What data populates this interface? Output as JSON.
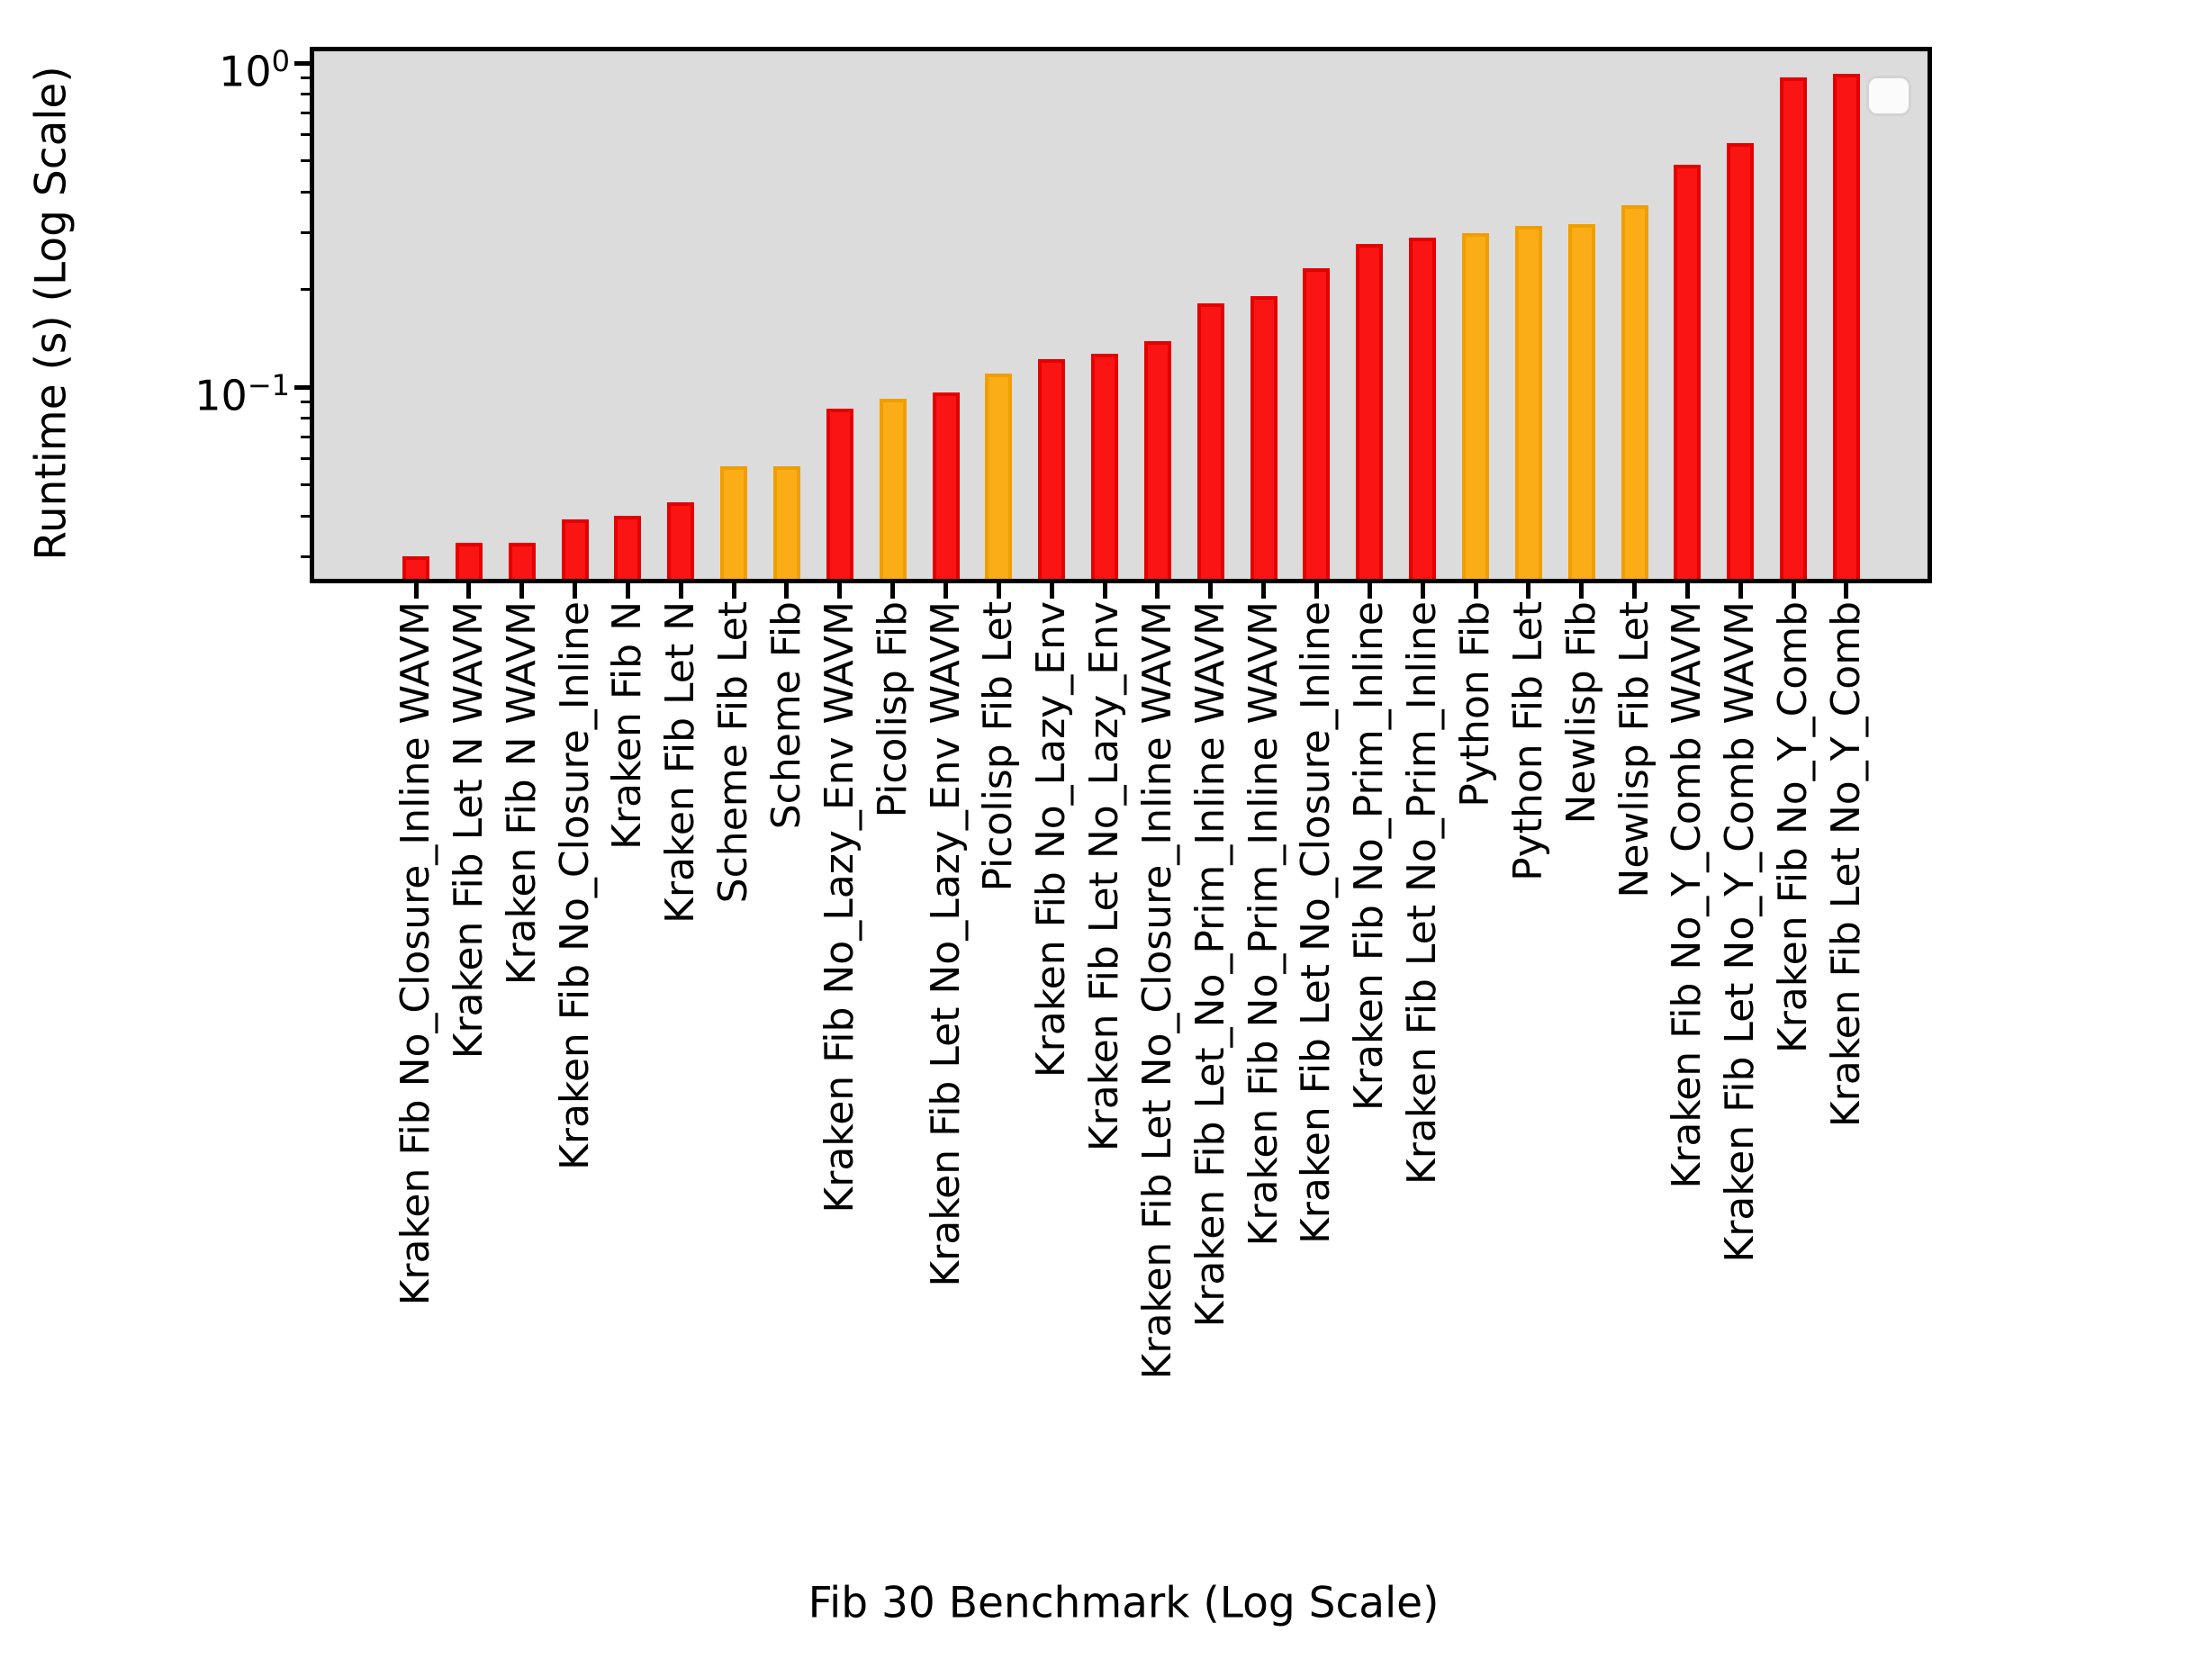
{
  "chart_data": {
    "type": "bar",
    "title": "",
    "xlabel": "Fib 30 Benchmark (Log Scale)",
    "ylabel": "Runtime (s) (Log Scale)",
    "y_scale": "log",
    "ylim": [
      0.0253,
      1.094
    ],
    "grid": false,
    "legend_position": "upper right",
    "legend_entries": [],
    "plot_bg": "#dcdcdc",
    "palette": {
      "red": {
        "fill": "#fa1414",
        "edge": "#e40000"
      },
      "orange": {
        "fill": "#fbad18",
        "edge": "#f09e00"
      }
    },
    "y_ticks": [
      {
        "base": "10",
        "exp": "0",
        "value": 1.0
      },
      {
        "base": "10",
        "exp": "−1",
        "value": 0.1
      }
    ],
    "y_minor_tick_values": [
      0.9,
      0.8,
      0.7,
      0.6,
      0.5,
      0.4,
      0.3,
      0.2,
      0.09,
      0.08,
      0.07,
      0.06,
      0.05,
      0.04,
      0.03
    ],
    "categories": [
      "Kraken Fib No_Closure_Inline WAVM",
      "Kraken Fib Let N WAVM",
      "Kraken Fib N WAVM",
      "Kraken Fib No_Closure_Inline",
      "Kraken Fib N",
      "Kraken Fib Let N",
      "Scheme Fib Let",
      "Scheme Fib",
      "Kraken Fib No_Lazy_Env WAVM",
      "Picolisp Fib",
      "Kraken Fib Let No_Lazy_Env WAVM",
      "Picolisp Fib Let",
      "Kraken Fib No_Lazy_Env",
      "Kraken Fib Let No_Lazy_Env",
      "Kraken Fib Let No_Closure_Inline WAVM",
      "Kraken Fib Let_No_Prim_Inline WAVM",
      "Kraken Fib No_Prim_Inline WAVM",
      "Kraken Fib Let No_Closure_Inline",
      "Kraken Fib No_Prim_Inline",
      "Kraken Fib Let No_Prim_Inline",
      "Python Fib",
      "Python Fib Let",
      "Newlisp Fib",
      "Newlisp Fib Let",
      "Kraken Fib No_Y_Comb WAVM",
      "Kraken Fib Let No_Y_Comb WAVM",
      "Kraken Fib No_Y_Comb",
      "Kraken Fib Let No_Y_Comb"
    ],
    "values": [
      0.03,
      0.033,
      0.033,
      0.039,
      0.04,
      0.044,
      0.057,
      0.057,
      0.086,
      0.092,
      0.096,
      0.11,
      0.122,
      0.127,
      0.139,
      0.181,
      0.191,
      0.233,
      0.276,
      0.289,
      0.299,
      0.314,
      0.318,
      0.364,
      0.485,
      0.566,
      0.903,
      0.926
    ],
    "bar_colors": [
      "red",
      "red",
      "red",
      "red",
      "red",
      "red",
      "orange",
      "orange",
      "red",
      "orange",
      "red",
      "orange",
      "red",
      "red",
      "red",
      "red",
      "red",
      "red",
      "red",
      "red",
      "orange",
      "orange",
      "orange",
      "orange",
      "red",
      "red",
      "red",
      "red"
    ]
  }
}
